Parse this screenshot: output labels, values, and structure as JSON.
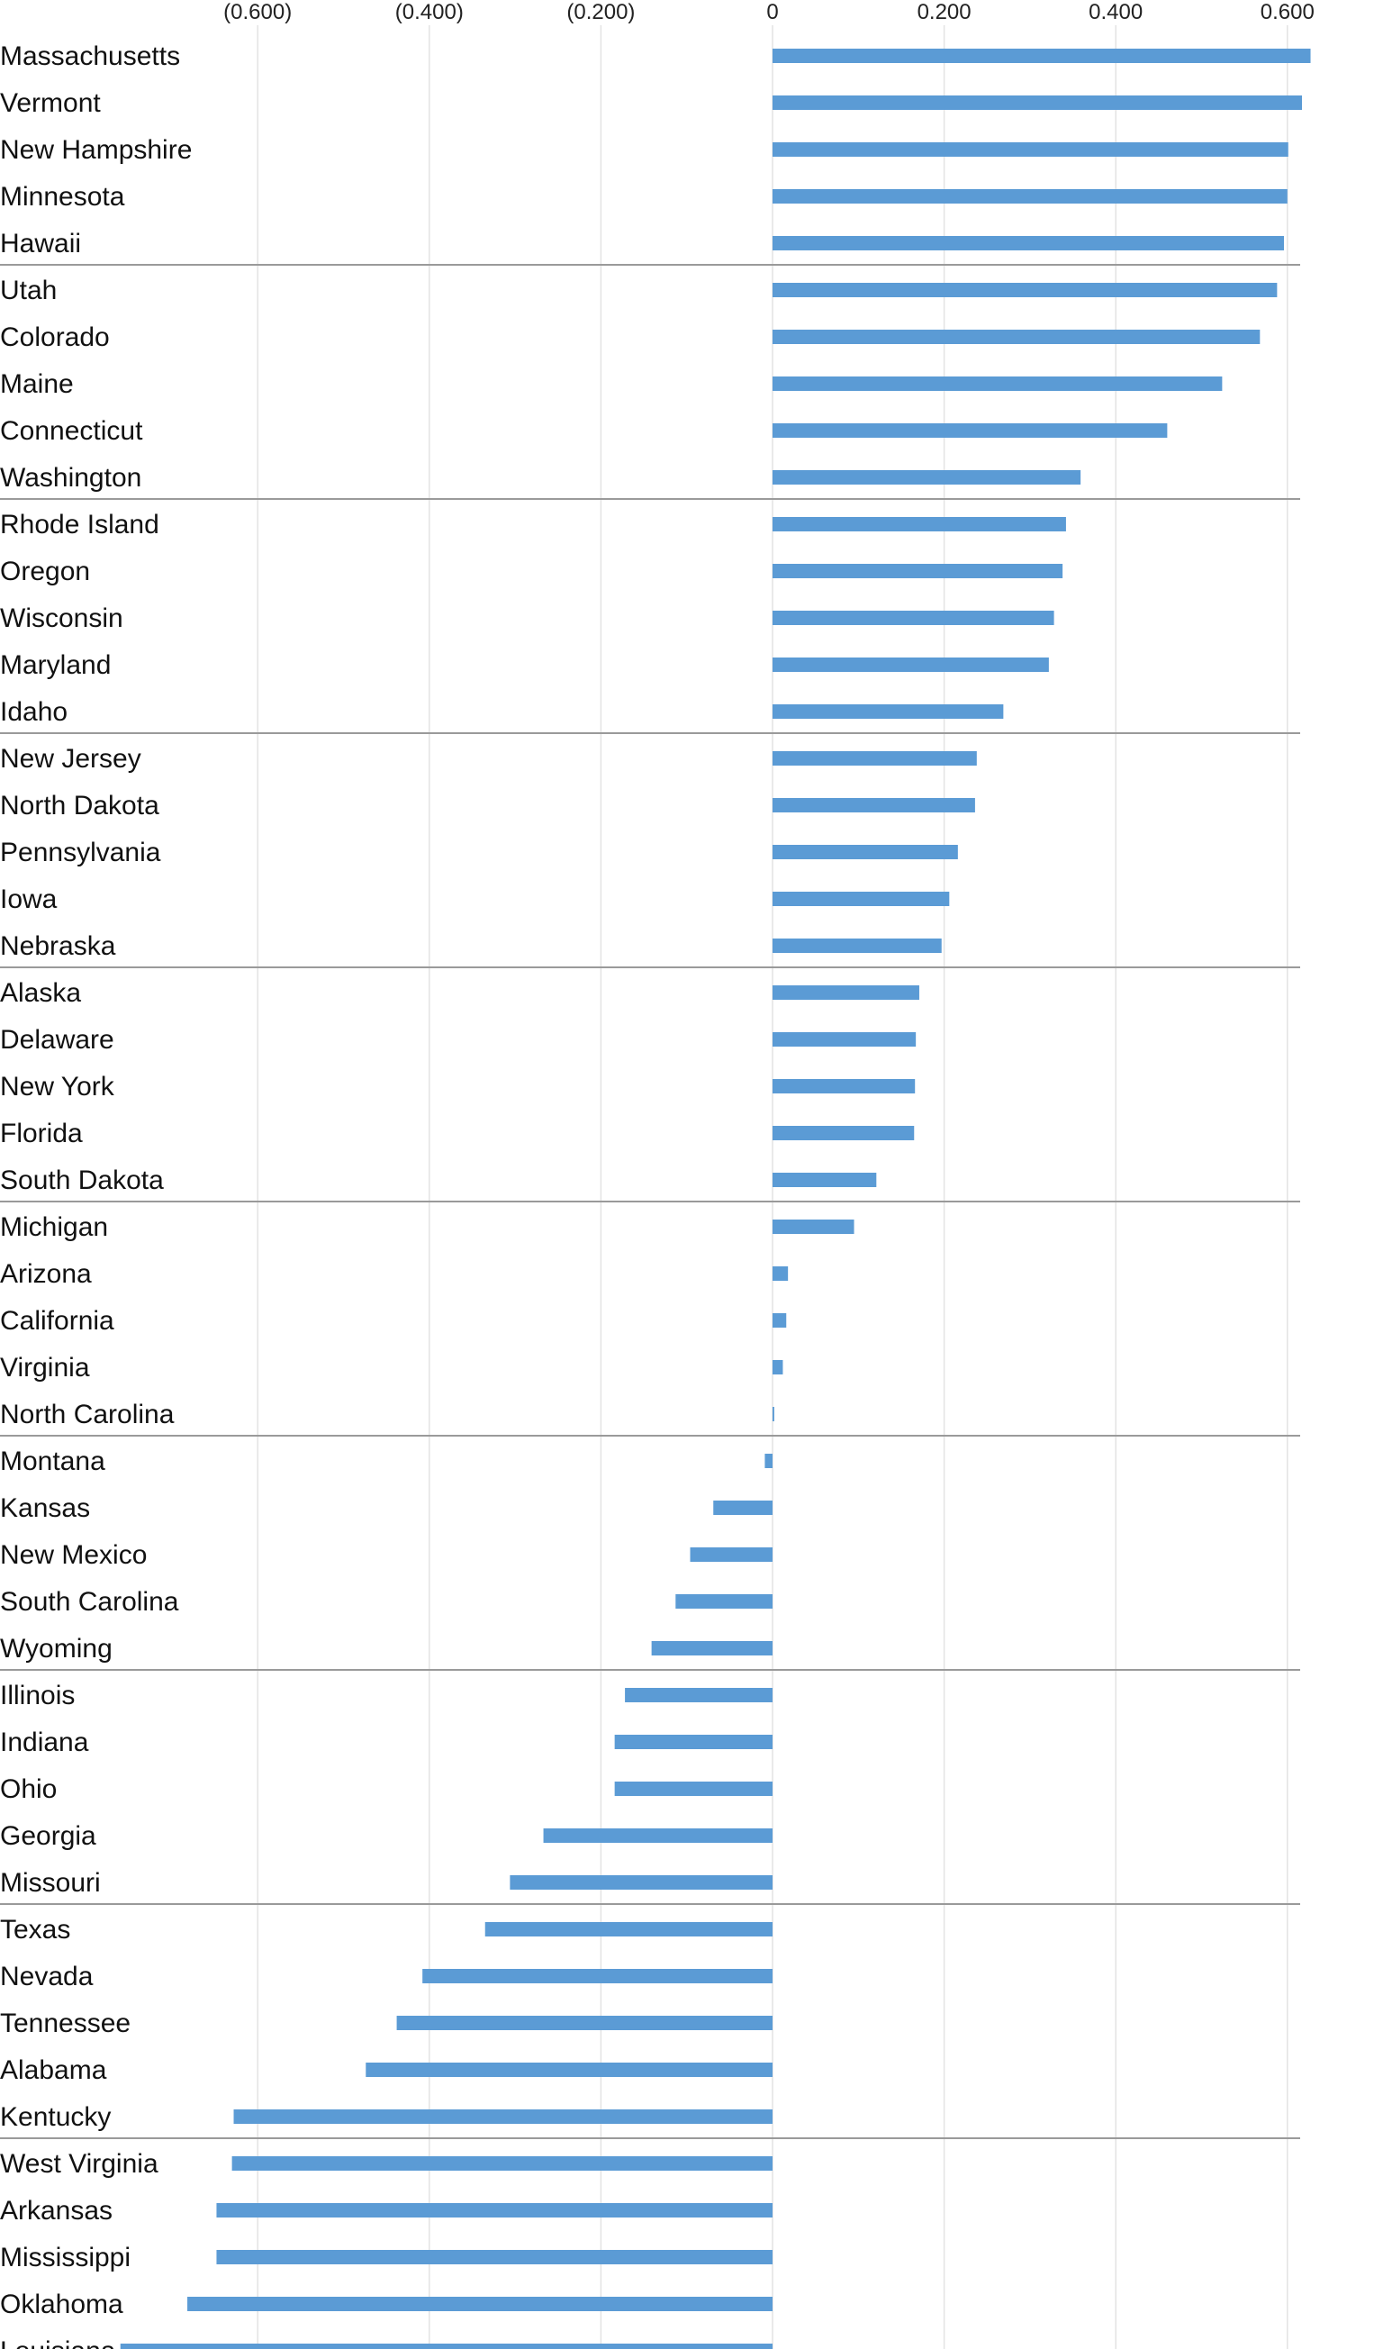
{
  "chart_data": {
    "type": "bar",
    "orientation": "horizontal",
    "title": "",
    "xlabel": "",
    "ylabel": "",
    "xlim": [
      -0.76,
      0.63
    ],
    "grid": true,
    "legend": "none",
    "bar_color": "#5B9BD5",
    "x_ticks": [
      -0.6,
      -0.4,
      -0.2,
      0,
      0.2,
      0.4,
      0.6
    ],
    "x_tick_labels": [
      "(0.600)",
      "(0.400)",
      "(0.200)",
      "0",
      "0.200",
      "0.400",
      "0.600"
    ],
    "group_size": 5,
    "categories": [
      "Massachusetts",
      "Vermont",
      "New Hampshire",
      "Minnesota",
      "Hawaii",
      "Utah",
      "Colorado",
      "Maine",
      "Connecticut",
      "Washington",
      "Rhode Island",
      "Oregon",
      "Wisconsin",
      "Maryland",
      "Idaho",
      "New Jersey",
      "North Dakota",
      "Pennsylvania",
      "Iowa",
      "Nebraska",
      "Alaska",
      "Delaware",
      "New York",
      "Florida",
      "South Dakota",
      "Michigan",
      "Arizona",
      "California",
      "Virginia",
      "North Carolina",
      "Montana",
      "Kansas",
      "New Mexico",
      "South Carolina",
      "Wyoming",
      "Illinois",
      "Indiana",
      "Ohio",
      "Georgia",
      "Missouri",
      "Texas",
      "Nevada",
      "Tennessee",
      "Alabama",
      "Kentucky",
      "West Virginia",
      "Arkansas",
      "Mississippi",
      "Oklahoma",
      "Louisiana"
    ],
    "values": [
      0.627,
      0.617,
      0.601,
      0.6,
      0.596,
      0.588,
      0.568,
      0.524,
      0.46,
      0.359,
      0.342,
      0.338,
      0.328,
      0.322,
      0.269,
      0.238,
      0.236,
      0.216,
      0.206,
      0.197,
      0.171,
      0.167,
      0.166,
      0.165,
      0.121,
      0.095,
      0.018,
      0.016,
      0.012,
      0.002,
      -0.009,
      -0.069,
      -0.096,
      -0.113,
      -0.141,
      -0.172,
      -0.184,
      -0.184,
      -0.267,
      -0.306,
      -0.335,
      -0.408,
      -0.438,
      -0.474,
      -0.628,
      -0.63,
      -0.648,
      -0.648,
      -0.682,
      -0.76
    ]
  }
}
